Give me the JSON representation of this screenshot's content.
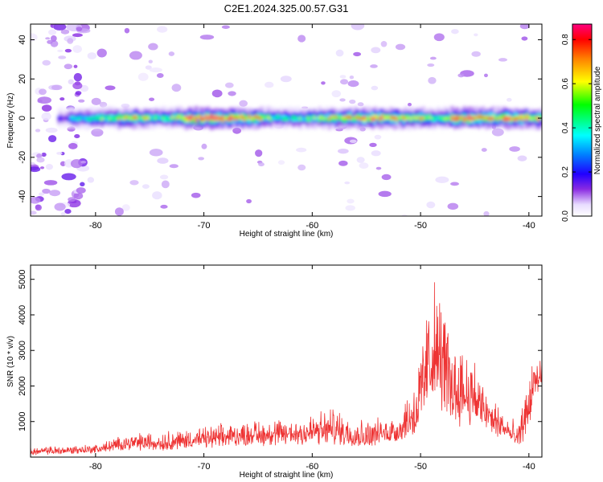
{
  "title": "C2E1.2024.325.00.57.G31",
  "chart_data": [
    {
      "type": "heatmap",
      "xlabel": "Height of straight line (km)",
      "ylabel": "Frequency (Hz)",
      "xlim": [
        -86,
        -38.8
      ],
      "ylim": [
        -50,
        48
      ],
      "xticks": [
        -80,
        -70,
        -60,
        -50,
        -40
      ],
      "yticks": [
        40,
        20,
        0,
        -20,
        -40
      ],
      "colorbar": {
        "label": "Normalized spectral amplitude",
        "range": [
          0,
          0.87
        ],
        "ticks": [
          0.0,
          0.2,
          0.4,
          0.6,
          0.8
        ],
        "colormap": [
          "#ffffff",
          "#e0d0ff",
          "#8000ff",
          "#0000ff",
          "#00ffff",
          "#00ff00",
          "#ffff00",
          "#ff8000",
          "#ff0000",
          "#ff0080"
        ]
      },
      "band": {
        "center_hz": 0,
        "amplitude_profile": [
          {
            "x": -82.5,
            "v": 0.35
          },
          {
            "x": -79,
            "v": 0.55
          },
          {
            "x": -76.5,
            "v": 0.65
          },
          {
            "x": -74,
            "v": 0.45
          },
          {
            "x": -71,
            "v": 0.85
          },
          {
            "x": -67,
            "v": 0.8
          },
          {
            "x": -63,
            "v": 0.4
          },
          {
            "x": -59.5,
            "v": 0.5
          },
          {
            "x": -56.5,
            "v": 0.75
          },
          {
            "x": -52,
            "v": 0.7
          },
          {
            "x": -48.5,
            "v": 0.5
          },
          {
            "x": -46.5,
            "v": 0.85
          },
          {
            "x": -44,
            "v": 0.6
          },
          {
            "x": -42,
            "v": 0.87
          },
          {
            "x": -39.5,
            "v": 0.7
          }
        ]
      }
    },
    {
      "type": "line",
      "xlabel": "Height of straight line (km)",
      "ylabel": "SNR (10 * v/v)",
      "xlim": [
        -86,
        -38.8
      ],
      "ylim": [
        0,
        5400
      ],
      "xticks": [
        -80,
        -70,
        -60,
        -50,
        -40
      ],
      "yticks": [
        1000,
        2000,
        3000,
        4000,
        5000
      ],
      "series": [
        {
          "color": "#ee3333",
          "envelope": [
            {
              "x": -86,
              "lo": 50,
              "hi": 300
            },
            {
              "x": -80,
              "lo": 100,
              "hi": 400
            },
            {
              "x": -77,
              "lo": 200,
              "hi": 700
            },
            {
              "x": -74,
              "lo": 150,
              "hi": 800
            },
            {
              "x": -70,
              "lo": 250,
              "hi": 900
            },
            {
              "x": -66,
              "lo": 300,
              "hi": 1100
            },
            {
              "x": -62,
              "lo": 300,
              "hi": 1200
            },
            {
              "x": -58,
              "lo": 300,
              "hi": 1500
            },
            {
              "x": -55,
              "lo": 250,
              "hi": 1100
            },
            {
              "x": -52,
              "lo": 400,
              "hi": 1300
            },
            {
              "x": -50.5,
              "lo": 500,
              "hi": 2500
            },
            {
              "x": -50,
              "lo": 800,
              "hi": 3200
            },
            {
              "x": -49.5,
              "lo": 1000,
              "hi": 4500
            },
            {
              "x": -48.8,
              "lo": 1500,
              "hi": 5400
            },
            {
              "x": -48,
              "lo": 1200,
              "hi": 4800
            },
            {
              "x": -47,
              "lo": 900,
              "hi": 3400
            },
            {
              "x": -46,
              "lo": 800,
              "hi": 3600
            },
            {
              "x": -45,
              "lo": 800,
              "hi": 3000
            },
            {
              "x": -44,
              "lo": 700,
              "hi": 2000
            },
            {
              "x": -42,
              "lo": 400,
              "hi": 1300
            },
            {
              "x": -41,
              "lo": 200,
              "hi": 900
            },
            {
              "x": -40,
              "lo": 700,
              "hi": 2500
            },
            {
              "x": -39.5,
              "lo": 1600,
              "hi": 3000
            },
            {
              "x": -38.8,
              "lo": 1800,
              "hi": 2900
            }
          ]
        }
      ]
    }
  ]
}
